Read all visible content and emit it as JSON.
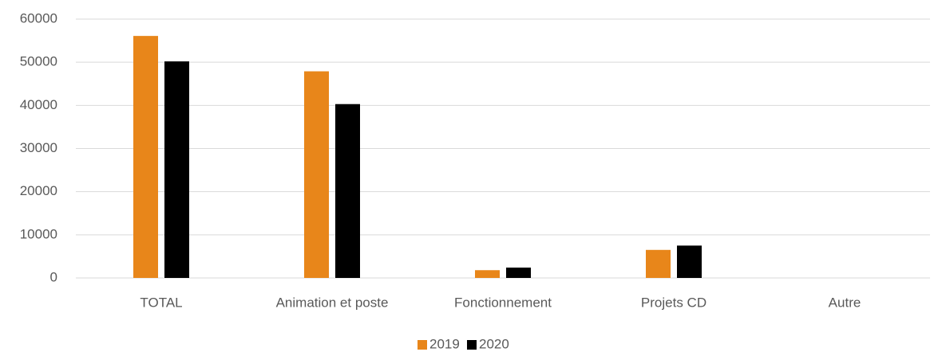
{
  "chart_data": {
    "type": "bar",
    "categories": [
      "TOTAL",
      "Animation et poste",
      "Fonctionnement",
      "Projets CD",
      "Autre"
    ],
    "series": [
      {
        "name": "2019",
        "color": "#e8861a",
        "values": [
          56100,
          47900,
          1800,
          6500,
          0
        ]
      },
      {
        "name": "2020",
        "color": "#000000",
        "values": [
          50200,
          40300,
          2400,
          7500,
          0
        ]
      }
    ],
    "ylim": [
      0,
      60000
    ],
    "yticks": [
      0,
      10000,
      20000,
      30000,
      40000,
      50000,
      60000
    ],
    "grid": true,
    "legend": "bottom"
  }
}
